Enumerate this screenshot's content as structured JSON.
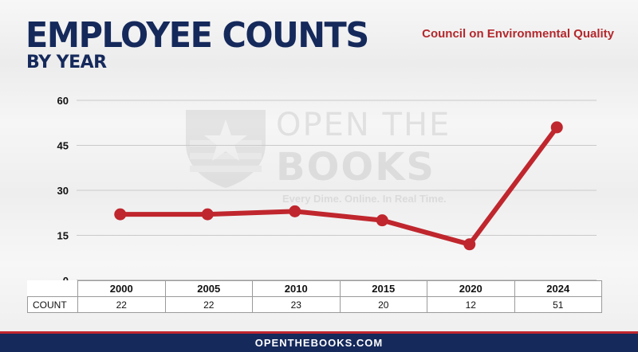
{
  "header": {
    "title": "EMPLOYEE COUNTS",
    "subtitle": "BY YEAR",
    "agency": "Council on Environmental Quality"
  },
  "watermark": {
    "line1": "OPEN THE",
    "line2": "BOOKS",
    "tagline": "Every Dime. Online. In Real Time."
  },
  "table": {
    "row_label": "COUNT"
  },
  "footer": {
    "text": "OPENTHEBOOKS.COM"
  },
  "colors": {
    "navy": "#15295b",
    "red": "#b3282d",
    "line": "#c0262d"
  },
  "chart_data": {
    "type": "line",
    "categories": [
      "2000",
      "2005",
      "2010",
      "2015",
      "2020",
      "2024"
    ],
    "series": [
      {
        "values": [
          22,
          22,
          23,
          20,
          12,
          51
        ]
      }
    ],
    "ylim": [
      0,
      60
    ],
    "yticks": [
      0,
      15,
      30,
      45,
      60
    ],
    "grid": true
  }
}
